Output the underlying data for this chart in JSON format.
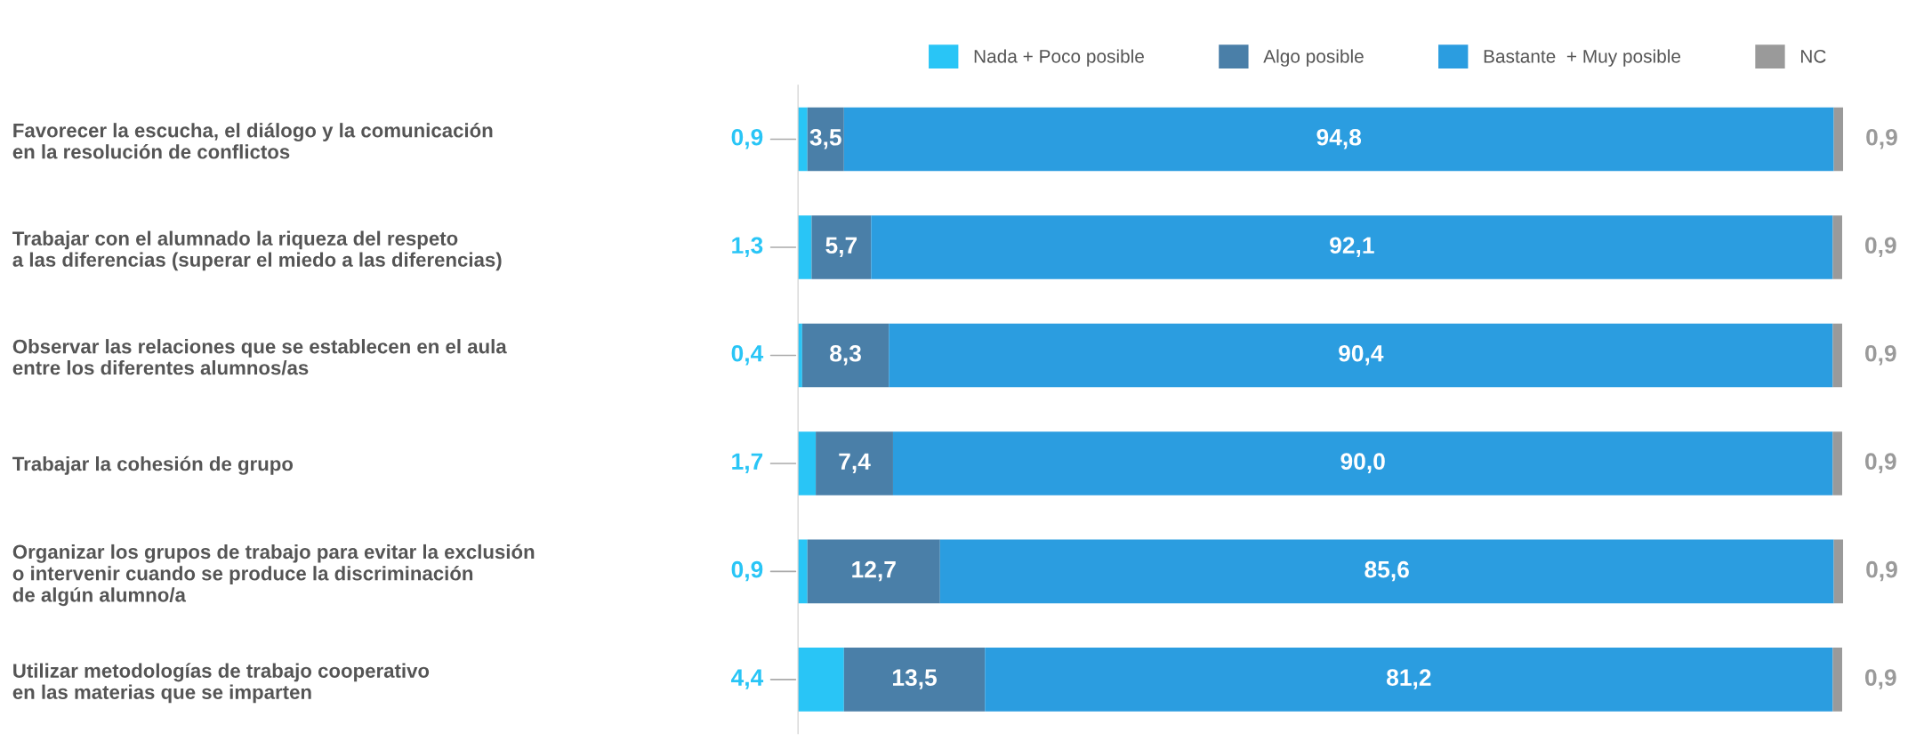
{
  "chart_data": {
    "type": "bar",
    "orientation": "horizontal",
    "stacked": true,
    "legend": "top right",
    "tick_labels": "y",
    "grid": false,
    "categories": [
      "Favorecer la escucha, el diálogo y la comunicación\nen la resolución de conflictos",
      "Trabajar con el alumnado la riqueza del respeto\na las diferencias (superar el miedo a las diferencias)",
      "Observar las relaciones que se establecen en el aula\nentre los diferentes alumnos/as",
      "Trabajar la cohesión de grupo",
      "Organizar los grupos de trabajo para evitar la exclusión\no intervenir cuando se produce la discriminación\nde algún alumno/a",
      "Utilizar metodologías de trabajo cooperativo\nen las materias que se imparten"
    ],
    "series": [
      {
        "name": "Nada + Poco posible",
        "color": "#29c5f6",
        "values": [
          0.9,
          1.3,
          0.4,
          1.7,
          0.9,
          4.4
        ],
        "value_labels": [
          "0,9",
          "1,3",
          "0,4",
          "1,7",
          "0,9",
          "4,4"
        ]
      },
      {
        "name": "Algo posible",
        "color": "#4a7fa8",
        "values": [
          3.5,
          5.7,
          8.3,
          7.4,
          12.7,
          13.5
        ],
        "value_labels": [
          "3,5",
          "5,7",
          "8,3",
          "7,4",
          "12,7",
          "13,5"
        ]
      },
      {
        "name": "Bastante  + Muy posible",
        "color": "#2b9de0",
        "values": [
          94.8,
          92.1,
          90.4,
          90.0,
          85.6,
          81.2
        ],
        "value_labels": [
          "94,8",
          "92,1",
          "90,4",
          "90,0",
          "85,6",
          "81,2"
        ]
      },
      {
        "name": "NC",
        "color": "#9a9a9a",
        "values": [
          0.9,
          0.9,
          0.9,
          0.9,
          0.9,
          0.9
        ],
        "value_labels": [
          "0,9",
          "0,9",
          "0,9",
          "0,9",
          "0,9",
          "0,9"
        ]
      }
    ]
  }
}
